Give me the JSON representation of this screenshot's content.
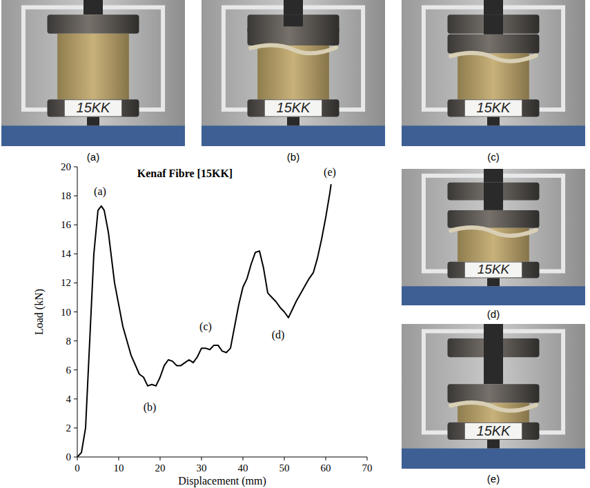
{
  "chart_data": {
    "type": "line",
    "title": "Kenaf Fibre [15KK]",
    "x_label": "Displacement (mm)",
    "y_label": "Load (kN)",
    "color": "#000000",
    "x": [
      0,
      1,
      2,
      3,
      4,
      5,
      5.8,
      6.5,
      7.5,
      9,
      11,
      13,
      15,
      16,
      17,
      18,
      19,
      20,
      21,
      22,
      23,
      24,
      25,
      26,
      27,
      28,
      29,
      30,
      31,
      32,
      33,
      34,
      35,
      36,
      37,
      38,
      39,
      40,
      41,
      42,
      43,
      44,
      45,
      46,
      47,
      48,
      49,
      50,
      51,
      52,
      53,
      54,
      55,
      56,
      57,
      58,
      59,
      60,
      61,
      61.3
    ],
    "values": [
      0,
      0.3,
      2,
      8,
      14,
      17,
      17.3,
      17,
      15.5,
      12,
      9,
      7,
      5.7,
      5.5,
      4.9,
      5,
      4.9,
      5.5,
      6.3,
      6.7,
      6.6,
      6.3,
      6.3,
      6.5,
      6.7,
      6.5,
      6.9,
      7.5,
      7.5,
      7.4,
      7.7,
      7.7,
      7.3,
      7.2,
      7.5,
      9,
      10.5,
      11.7,
      12.3,
      13.3,
      14.1,
      14.2,
      13,
      11.3,
      11,
      10.7,
      10.3,
      10,
      9.6,
      10.2,
      10.8,
      11.3,
      11.8,
      12.3,
      12.7,
      13.7,
      15,
      16.5,
      18.2,
      18.8
    ],
    "xlim": [
      0,
      70
    ],
    "xticks": [
      0,
      10,
      20,
      30,
      40,
      50,
      60,
      70
    ],
    "ylim": [
      0,
      20
    ],
    "yticks": [
      0,
      2,
      4,
      6,
      8,
      10,
      12,
      14,
      16,
      18,
      20
    ],
    "annotations": [
      {
        "text": "(a)",
        "x": 5.5,
        "y": 18.3
      },
      {
        "text": "(b)",
        "x": 17.5,
        "y": 3.4
      },
      {
        "text": "(c)",
        "x": 31,
        "y": 9
      },
      {
        "text": "(d)",
        "x": 48.5,
        "y": 8.4
      },
      {
        "text": "(e)",
        "x": 61,
        "y": 19.6
      }
    ]
  },
  "photos": [
    {
      "caption": "(a)",
      "specimen_label": "15KK"
    },
    {
      "caption": "(b)",
      "specimen_label": "15KK"
    },
    {
      "caption": "(c)",
      "specimen_label": "15KK"
    },
    {
      "caption": "(d)",
      "specimen_label": "15KK"
    },
    {
      "caption": "(e)",
      "specimen_label": "15KK"
    }
  ]
}
